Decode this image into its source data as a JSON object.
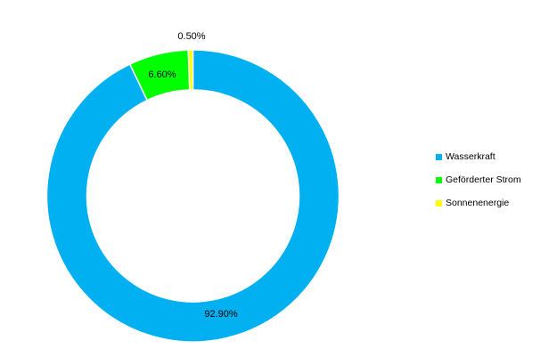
{
  "chart_data": {
    "type": "pie",
    "variant": "doughnut",
    "series": [
      {
        "name": "Wasserkraft",
        "value": 92.9,
        "label": "92.90%",
        "color": "#00b0f0"
      },
      {
        "name": "Geförderter Strom",
        "value": 6.6,
        "label": "6.60%",
        "color": "#00ff00"
      },
      {
        "name": "Sonnenenergie",
        "value": 0.5,
        "label": "0.50%",
        "color": "#ffff00"
      }
    ],
    "legend_position": "right"
  }
}
